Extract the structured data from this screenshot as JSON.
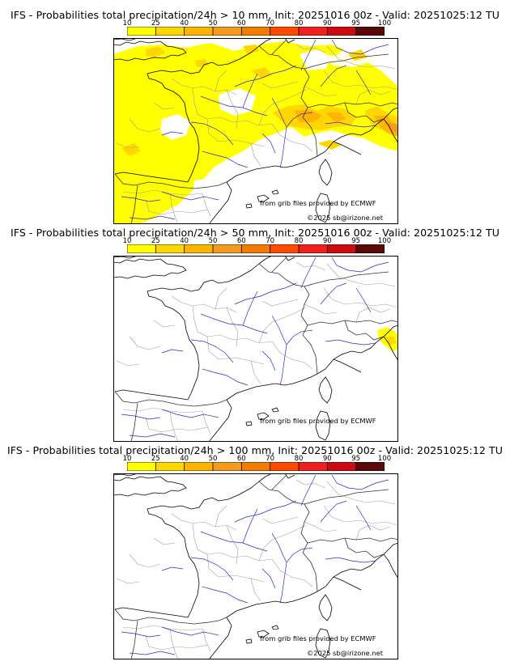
{
  "palette": [
    "#ffff00",
    "#ffd700",
    "#ffb400",
    "#f49a1e",
    "#f27c00",
    "#ff4a00",
    "#f0201e",
    "#cc0a10",
    "#961010",
    "#5a0808"
  ],
  "colorbar_ticks": [
    "10",
    "25",
    "40",
    "50",
    "60",
    "70",
    "80",
    "90",
    "95",
    "100"
  ],
  "credits": {
    "source": "from grib files provided by ECMWF",
    "copyright": "©2025 sb@irizone.net"
  },
  "panels": [
    {
      "title": "IFS - Probabilities total precipitation/24h > 10 mm, Init: 20251016 00z - Valid: 20251025:12 TU",
      "threshold_mm": 10,
      "precip_coverage": "widespread"
    },
    {
      "title": "IFS - Probabilities total precipitation/24h > 50 mm, Init: 20251016 00z - Valid: 20251025:12 TU",
      "threshold_mm": 50,
      "precip_coverage": "small"
    },
    {
      "title": "IFS - Probabilities total precipitation/24h > 100 mm, Init: 20251016 00z - Valid: 20251025:12 TU",
      "threshold_mm": 100,
      "precip_coverage": "none"
    }
  ]
}
